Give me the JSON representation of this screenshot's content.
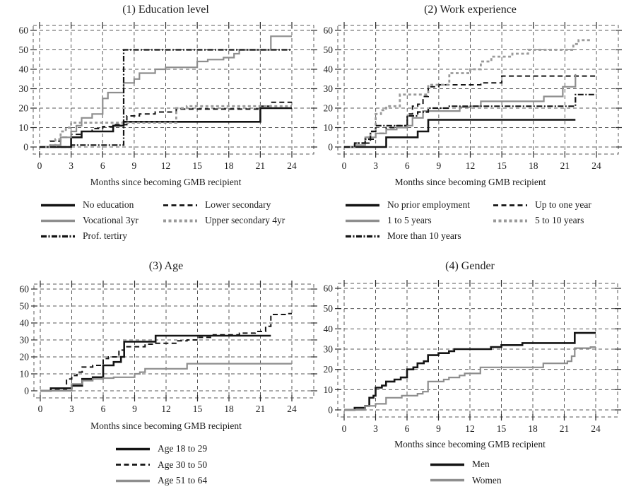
{
  "colors": {
    "black": "#141414",
    "gray": "#8e8e8e",
    "gray_dash": "#9a9a9a",
    "grid": "#585858",
    "tick": "#2a2a2a",
    "text": "#1c1c1c",
    "background": "#ffffff"
  },
  "chart_data": [
    {
      "type": "line",
      "step": true,
      "title": "(1) Education level",
      "xlabel": "Months since becoming GMB recipient",
      "ylabel": "",
      "xlim": [
        0,
        24
      ],
      "ylim": [
        0,
        60
      ],
      "x_ticks": [
        0,
        3,
        6,
        9,
        12,
        15,
        18,
        21,
        24
      ],
      "y_ticks": [
        0,
        10,
        20,
        30,
        40,
        50,
        60
      ],
      "grid": true,
      "legend_position": "below",
      "legend_columns": 2,
      "series": [
        {
          "name": "No education",
          "color": "black",
          "style": "solid",
          "width": 2.6,
          "points": [
            [
              0,
              0
            ],
            [
              3,
              5
            ],
            [
              4,
              8
            ],
            [
              7,
              11
            ],
            [
              8,
              13
            ],
            [
              21,
              20
            ],
            [
              24,
              20
            ]
          ]
        },
        {
          "name": "Lower secondary",
          "color": "black",
          "style": "dash",
          "width": 2,
          "points": [
            [
              0,
              0
            ],
            [
              1,
              3
            ],
            [
              2,
              5
            ],
            [
              3,
              6.5
            ],
            [
              4,
              8
            ],
            [
              5,
              9.5
            ],
            [
              6,
              10.5
            ],
            [
              7,
              11.5
            ],
            [
              8.3,
              16
            ],
            [
              9.5,
              17
            ],
            [
              11,
              18
            ],
            [
              13,
              19.5
            ],
            [
              21,
              21
            ],
            [
              22,
              23
            ],
            [
              24,
              23
            ]
          ]
        },
        {
          "name": "Vocational 3yr",
          "color": "gray",
          "style": "solid",
          "width": 2.2,
          "points": [
            [
              0,
              0
            ],
            [
              1,
              1
            ],
            [
              2,
              5
            ],
            [
              3,
              8
            ],
            [
              3.5,
              11
            ],
            [
              4,
              15
            ],
            [
              5,
              17
            ],
            [
              6,
              25
            ],
            [
              6.5,
              28
            ],
            [
              8,
              33
            ],
            [
              9,
              35
            ],
            [
              9.5,
              38
            ],
            [
              11,
              40
            ],
            [
              12,
              41
            ],
            [
              15,
              44
            ],
            [
              16,
              45
            ],
            [
              17.5,
              46
            ],
            [
              18.5,
              48
            ],
            [
              19,
              50
            ],
            [
              22,
              57
            ],
            [
              24,
              57
            ]
          ]
        },
        {
          "name": "Upper secondary 4yr",
          "color": "gray_dash",
          "style": "squaredash",
          "width": 2.8,
          "points": [
            [
              0,
              0
            ],
            [
              1.5,
              4
            ],
            [
              2,
              8
            ],
            [
              2.5,
              10
            ],
            [
              3,
              12.5
            ],
            [
              13,
              20
            ],
            [
              14,
              21
            ],
            [
              24,
              21
            ]
          ]
        },
        {
          "name": "Prof. tertiry",
          "color": "black",
          "style": "dashdotdot",
          "width": 2.2,
          "points": [
            [
              0,
              0
            ],
            [
              3,
              1
            ],
            [
              8,
              50
            ],
            [
              24,
              50
            ]
          ]
        }
      ]
    },
    {
      "type": "line",
      "step": true,
      "title": "(2) Work experience",
      "xlabel": "Months since becoming GMB recipient",
      "ylabel": "",
      "xlim": [
        0,
        24
      ],
      "ylim": [
        0,
        60
      ],
      "x_ticks": [
        0,
        3,
        6,
        9,
        12,
        15,
        18,
        21,
        24
      ],
      "y_ticks": [
        0,
        10,
        20,
        30,
        40,
        50,
        60
      ],
      "grid": true,
      "legend_position": "below",
      "legend_columns": 2,
      "series": [
        {
          "name": "No prior employment",
          "color": "black",
          "style": "solid",
          "width": 2.6,
          "points": [
            [
              0,
              0
            ],
            [
              4,
              5
            ],
            [
              7,
              8
            ],
            [
              8,
              14
            ],
            [
              22,
              14
            ]
          ]
        },
        {
          "name": "Up to one year",
          "color": "black",
          "style": "dash",
          "width": 2,
          "points": [
            [
              0,
              0
            ],
            [
              2,
              2
            ],
            [
              2.5,
              4
            ],
            [
              3,
              7
            ],
            [
              4,
              10
            ],
            [
              5,
              11
            ],
            [
              6,
              17
            ],
            [
              6.5,
              21
            ],
            [
              7,
              22
            ],
            [
              7.5,
              26
            ],
            [
              8,
              31
            ],
            [
              9,
              32
            ],
            [
              13,
              33
            ],
            [
              15,
              36.5
            ],
            [
              24,
              36.5
            ]
          ]
        },
        {
          "name": "1 to 5 years",
          "color": "gray",
          "style": "solid",
          "width": 2.2,
          "points": [
            [
              0,
              0
            ],
            [
              1,
              1
            ],
            [
              2,
              5
            ],
            [
              3,
              7
            ],
            [
              4,
              9
            ],
            [
              5,
              10
            ],
            [
              6,
              11
            ],
            [
              6.5,
              15
            ],
            [
              7.5,
              18.5
            ],
            [
              11,
              20.5
            ],
            [
              12,
              21
            ],
            [
              13,
              23.5
            ],
            [
              19,
              26
            ],
            [
              20.8,
              31
            ],
            [
              22,
              37.5
            ]
          ]
        },
        {
          "name": "5 to 10 years",
          "color": "gray_dash",
          "style": "squaredash",
          "width": 2.8,
          "points": [
            [
              0,
              0
            ],
            [
              1,
              2
            ],
            [
              2,
              5
            ],
            [
              2.5,
              8
            ],
            [
              3,
              17
            ],
            [
              3.5,
              19
            ],
            [
              4,
              21
            ],
            [
              5.3,
              27
            ],
            [
              8,
              32
            ],
            [
              10,
              38
            ],
            [
              12,
              40
            ],
            [
              13,
              44
            ],
            [
              14,
              46.5
            ],
            [
              16,
              48
            ],
            [
              17.5,
              50
            ],
            [
              21.8,
              53
            ],
            [
              22.3,
              55
            ],
            [
              23.5,
              55
            ]
          ]
        },
        {
          "name": "More than 10 years",
          "color": "black",
          "style": "dashdotdot",
          "width": 2.2,
          "points": [
            [
              0,
              0
            ],
            [
              1,
              2
            ],
            [
              2,
              4
            ],
            [
              2.5,
              8
            ],
            [
              3,
              11
            ],
            [
              6,
              16
            ],
            [
              7,
              18
            ],
            [
              8,
              20
            ],
            [
              10,
              21
            ],
            [
              22,
              27
            ],
            [
              24,
              27
            ]
          ]
        }
      ]
    },
    {
      "type": "line",
      "step": true,
      "title": "(3) Age",
      "xlabel": "Months since becoming GMB recipient",
      "ylabel": "",
      "xlim": [
        0,
        24
      ],
      "ylim": [
        0,
        60
      ],
      "x_ticks": [
        0,
        3,
        6,
        9,
        12,
        15,
        18,
        21,
        24
      ],
      "y_ticks": [
        0,
        10,
        20,
        30,
        40,
        50,
        60
      ],
      "grid": true,
      "legend_position": "below",
      "legend_columns": 1,
      "series": [
        {
          "name": "Age 18 to 29",
          "color": "black",
          "style": "solid",
          "width": 2.6,
          "points": [
            [
              0,
              0
            ],
            [
              1,
              1.5
            ],
            [
              3,
              3
            ],
            [
              4,
              7
            ],
            [
              5,
              8
            ],
            [
              6,
              15
            ],
            [
              7,
              17
            ],
            [
              7.7,
              20
            ],
            [
              8,
              29
            ],
            [
              11,
              32.5
            ],
            [
              22,
              32.5
            ]
          ]
        },
        {
          "name": "Age 30 to 50",
          "color": "black",
          "style": "dash",
          "width": 2,
          "points": [
            [
              0,
              0
            ],
            [
              1,
              1
            ],
            [
              2.5,
              7
            ],
            [
              3,
              9
            ],
            [
              3.5,
              11
            ],
            [
              4,
              14
            ],
            [
              5,
              15
            ],
            [
              6,
              19
            ],
            [
              6.5,
              20
            ],
            [
              7.5,
              24
            ],
            [
              8,
              26
            ],
            [
              10,
              27.5
            ],
            [
              11,
              28
            ],
            [
              13,
              29.5
            ],
            [
              14,
              30
            ],
            [
              15,
              31.5
            ],
            [
              16.5,
              33
            ],
            [
              19,
              34
            ],
            [
              20.5,
              35
            ],
            [
              21.5,
              38
            ],
            [
              22,
              45
            ],
            [
              23.5,
              45.5
            ],
            [
              24,
              45.5
            ]
          ]
        },
        {
          "name": "Age 51 to 64",
          "color": "gray",
          "style": "solid",
          "width": 2.2,
          "points": [
            [
              0,
              0
            ],
            [
              3,
              4
            ],
            [
              4,
              6
            ],
            [
              5,
              7
            ],
            [
              6,
              7.5
            ],
            [
              7,
              8
            ],
            [
              9,
              10
            ],
            [
              9.5,
              11
            ],
            [
              10,
              13
            ],
            [
              14,
              16
            ],
            [
              24,
              16
            ]
          ]
        }
      ]
    },
    {
      "type": "line",
      "step": true,
      "title": "(4) Gender",
      "xlabel": "Months since becoming GMB recipient",
      "ylabel": "",
      "xlim": [
        0,
        24
      ],
      "ylim": [
        0,
        60
      ],
      "x_ticks": [
        0,
        3,
        6,
        9,
        12,
        15,
        18,
        21,
        24
      ],
      "y_ticks": [
        0,
        10,
        20,
        30,
        40,
        50,
        60
      ],
      "grid": true,
      "legend_position": "below",
      "legend_columns": 1,
      "series": [
        {
          "name": "Men",
          "color": "black",
          "style": "solid",
          "width": 2.6,
          "points": [
            [
              0,
              0
            ],
            [
              1,
              1
            ],
            [
              2,
              2
            ],
            [
              2.4,
              6
            ],
            [
              2.8,
              7
            ],
            [
              3,
              11
            ],
            [
              3.6,
              12
            ],
            [
              4,
              14
            ],
            [
              4.8,
              15
            ],
            [
              5.4,
              16
            ],
            [
              6,
              20
            ],
            [
              6.6,
              21
            ],
            [
              7,
              23
            ],
            [
              7.6,
              24
            ],
            [
              8,
              27
            ],
            [
              9,
              28
            ],
            [
              10,
              29
            ],
            [
              10.5,
              30
            ],
            [
              14,
              31
            ],
            [
              15,
              32
            ],
            [
              17,
              33
            ],
            [
              22,
              38
            ],
            [
              24,
              38
            ]
          ]
        },
        {
          "name": "Women",
          "color": "gray",
          "style": "solid",
          "width": 2.2,
          "points": [
            [
              0,
              0
            ],
            [
              2,
              2
            ],
            [
              3,
              3
            ],
            [
              4,
              6
            ],
            [
              5.5,
              7
            ],
            [
              7,
              8
            ],
            [
              7.5,
              9
            ],
            [
              8,
              14
            ],
            [
              9.5,
              15
            ],
            [
              10,
              16
            ],
            [
              11,
              17
            ],
            [
              11.5,
              18
            ],
            [
              13,
              21
            ],
            [
              19,
              23
            ],
            [
              21.3,
              24
            ],
            [
              21.7,
              26.5
            ],
            [
              22,
              30.5
            ],
            [
              23.5,
              31
            ],
            [
              24,
              31
            ]
          ]
        }
      ]
    }
  ]
}
